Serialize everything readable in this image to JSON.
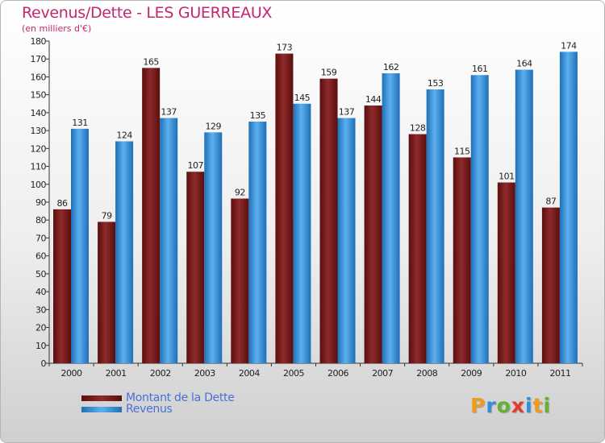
{
  "header": {
    "title": "Revenus/Dette - LES GUERREAUX",
    "subtitle": "(en milliers d'€)"
  },
  "colors": {
    "dette": "#7a1a1a",
    "revenus": "#2f8fdb",
    "title": "#c4266c",
    "legend_text": "#4a6fd6"
  },
  "chart_data": {
    "type": "bar",
    "title": "Revenus/Dette - LES GUERREAUX",
    "ylabel": "(en milliers d'€)",
    "xlabel": "",
    "categories": [
      "2000",
      "2001",
      "2002",
      "2003",
      "2004",
      "2005",
      "2006",
      "2007",
      "2008",
      "2009",
      "2010",
      "2011"
    ],
    "series": [
      {
        "name": "Montant de la Dette",
        "values": [
          86,
          79,
          165,
          107,
          92,
          173,
          159,
          144,
          128,
          115,
          101,
          87
        ]
      },
      {
        "name": "Revenus",
        "values": [
          131,
          124,
          137,
          129,
          135,
          145,
          137,
          162,
          153,
          161,
          164,
          174
        ]
      }
    ],
    "ylim": [
      0,
      180
    ],
    "yticks": [
      0,
      10,
      20,
      30,
      40,
      50,
      60,
      70,
      80,
      90,
      100,
      110,
      120,
      130,
      140,
      150,
      160,
      170,
      180
    ],
    "grid": false,
    "legend_position": "bottom-left"
  },
  "legend": {
    "items": [
      {
        "label": "Montant de la Dette"
      },
      {
        "label": "Revenus"
      }
    ]
  },
  "logo": {
    "letters": [
      "P",
      "r",
      "o",
      "x",
      "i",
      "t",
      "i"
    ],
    "colors": [
      "#f29a1e",
      "#2f8fdb",
      "#66b032",
      "#e63a2f",
      "#2f8fdb",
      "#f29a1e",
      "#66b032"
    ]
  }
}
